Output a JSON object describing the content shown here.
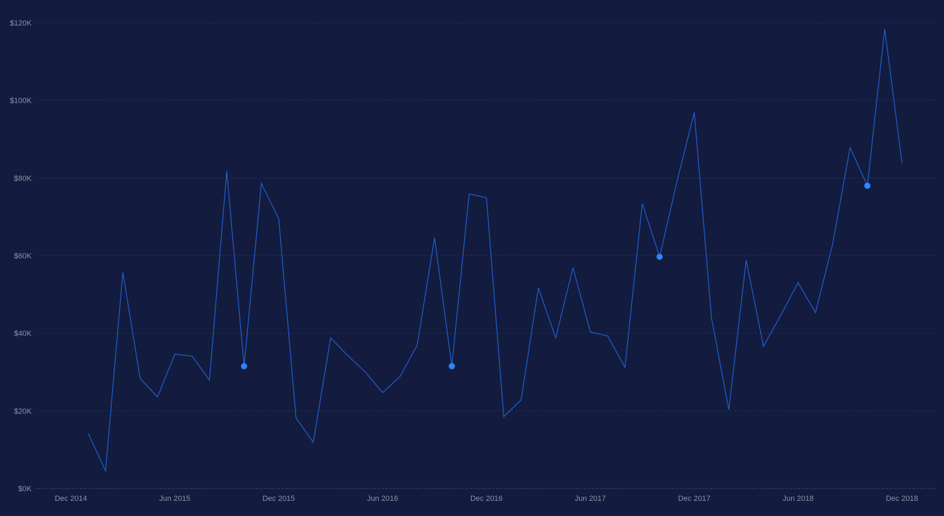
{
  "colors": {
    "background": "#131b3e",
    "line": "#1f5fd1",
    "marker": "#2a86ff",
    "tick_text": "#8c93a8",
    "grid": "#27305a"
  },
  "chart_data": {
    "type": "line",
    "title": "",
    "xlabel": "",
    "ylabel": "",
    "ylim": [
      0,
      120000
    ],
    "y_ticks": [
      {
        "value": 0,
        "label": "$0K"
      },
      {
        "value": 20000,
        "label": "$20K"
      },
      {
        "value": 40000,
        "label": "$40K"
      },
      {
        "value": 60000,
        "label": "$60K"
      },
      {
        "value": 80000,
        "label": "$80K"
      },
      {
        "value": 100000,
        "label": "$100K"
      },
      {
        "value": 120000,
        "label": "$120K"
      }
    ],
    "x_ticks": [
      {
        "value": "2014-12",
        "label": "Dec 2014"
      },
      {
        "value": "2015-06",
        "label": "Jun 2015"
      },
      {
        "value": "2015-12",
        "label": "Dec 2015"
      },
      {
        "value": "2016-06",
        "label": "Jun 2016"
      },
      {
        "value": "2016-12",
        "label": "Dec 2016"
      },
      {
        "value": "2017-06",
        "label": "Jun 2017"
      },
      {
        "value": "2017-12",
        "label": "Dec 2017"
      },
      {
        "value": "2018-06",
        "label": "Jun 2018"
      },
      {
        "value": "2018-12",
        "label": "Dec 2018"
      }
    ],
    "grid": true,
    "legend": "none",
    "series": [
      {
        "x": [
          "2015-01",
          "2015-02",
          "2015-03",
          "2015-04",
          "2015-05",
          "2015-06",
          "2015-07",
          "2015-08",
          "2015-09",
          "2015-10",
          "2015-11",
          "2015-12",
          "2016-01",
          "2016-02",
          "2016-03",
          "2016-04",
          "2016-05",
          "2016-06",
          "2016-07",
          "2016-08",
          "2016-09",
          "2016-10",
          "2016-11",
          "2016-12",
          "2017-01",
          "2017-02",
          "2017-03",
          "2017-04",
          "2017-05",
          "2017-06",
          "2017-07",
          "2017-08",
          "2017-09",
          "2017-10",
          "2017-11",
          "2017-12",
          "2018-01",
          "2018-02",
          "2018-03",
          "2018-04",
          "2018-05",
          "2018-06",
          "2018-07",
          "2018-08",
          "2018-09",
          "2018-10",
          "2018-11",
          "2018-12"
        ],
        "values": [
          14200,
          4500,
          55700,
          28300,
          23600,
          34600,
          34100,
          27900,
          81800,
          31500,
          78600,
          69500,
          18200,
          11900,
          38800,
          34200,
          30000,
          24700,
          28800,
          36900,
          64600,
          31500,
          75900,
          74900,
          18500,
          22800,
          51700,
          38800,
          56900,
          40300,
          39300,
          31200,
          73400,
          59700,
          79000,
          96900,
          43900,
          20300,
          58800,
          36600,
          44700,
          53000,
          45300,
          63100,
          87800,
          78000,
          118400,
          83800
        ]
      }
    ],
    "highlighted_points": [
      "2015-10",
      "2016-10",
      "2017-10",
      "2018-10"
    ]
  }
}
